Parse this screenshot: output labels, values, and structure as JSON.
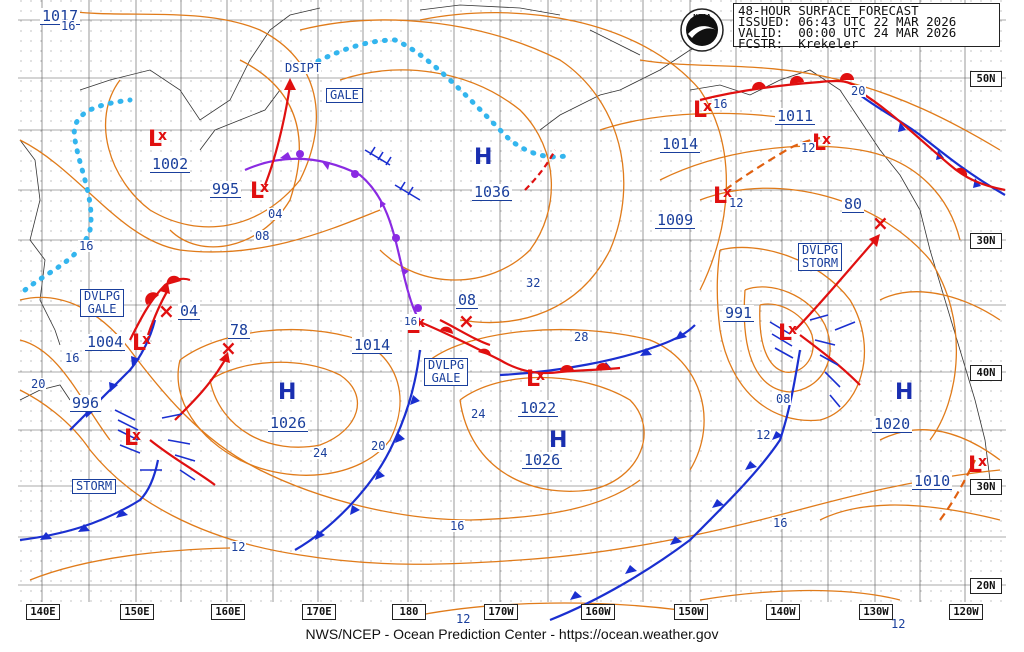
{
  "header": {
    "line1": "48-HOUR SURFACE FORECAST",
    "line2": "ISSUED: 06:43 UTC 22 MAR 2026",
    "line3": "VALID:  00:00 UTC 24 MAR 2026",
    "line4": "FCSTR:  Krekeler",
    "logo_text": "NOAA"
  },
  "footer": "NWS/NCEP - Ocean Prediction Center - https://ocean.weather.gov",
  "longitudes": [
    "140E",
    "150E",
    "160E",
    "170E",
    "180",
    "170W",
    "160W",
    "150W",
    "140W",
    "130W",
    "120W"
  ],
  "latitudes": [
    "50N",
    "40N",
    "30N",
    "20N"
  ],
  "lat_text": {
    "l1": "50N",
    "l2": "30N",
    "l3": "40N",
    "l4": "30N",
    "l5": "20N"
  },
  "systems": {
    "p1002": "1002",
    "p995": "995",
    "p1004": "1004",
    "p04a": "04",
    "p996": "996",
    "p78": "78",
    "p1026w": "1026",
    "p1014w": "1014",
    "p08": "08",
    "p16": "16",
    "p1036": "1036",
    "p1022": "1022",
    "p1026c": "1026",
    "p1014e": "1014",
    "p1011": "1011",
    "p1009": "1009",
    "p80": "80",
    "p991": "991",
    "p1020": "1020",
    "p1010": "1010",
    "p12a": "12",
    "p12b": "12",
    "p12c": "12",
    "p16topleft": "16",
    "p16b": "16",
    "p1017": "1017"
  },
  "labels": {
    "dsipt": "DSIPT",
    "gale1": "GALE",
    "dvlpg_gale_w_1": "DVLPG",
    "dvlpg_gale_w_2": "GALE",
    "dvlpg_gale_c_1": "DVLPG",
    "dvlpg_gale_c_2": "GALE",
    "dvlpg_storm_1": "DVLPG",
    "dvlpg_storm_2": "STORM",
    "storm": "STORM"
  },
  "isobar_labels": {
    "i04": "04",
    "i08a": "08",
    "i16a": "16",
    "i16b": "16",
    "i20a": "20",
    "i24a": "24",
    "i20b": "20",
    "i24b": "24",
    "i32": "32",
    "i28": "28",
    "i16c": "16",
    "i12a": "12",
    "i12b": "12",
    "i08b": "08",
    "i12c": "12",
    "i16d": "16",
    "i12d": "12",
    "i20c": "20",
    "i12e": "12",
    "i12f": "12"
  },
  "colors": {
    "isobar": "#e07b1a",
    "cold": "#1a2fd0",
    "warm": "#e01010",
    "occluded": "#8a2be2",
    "ice": "#33b5ee",
    "text": "#1a3f9c",
    "grid": "#555555"
  }
}
